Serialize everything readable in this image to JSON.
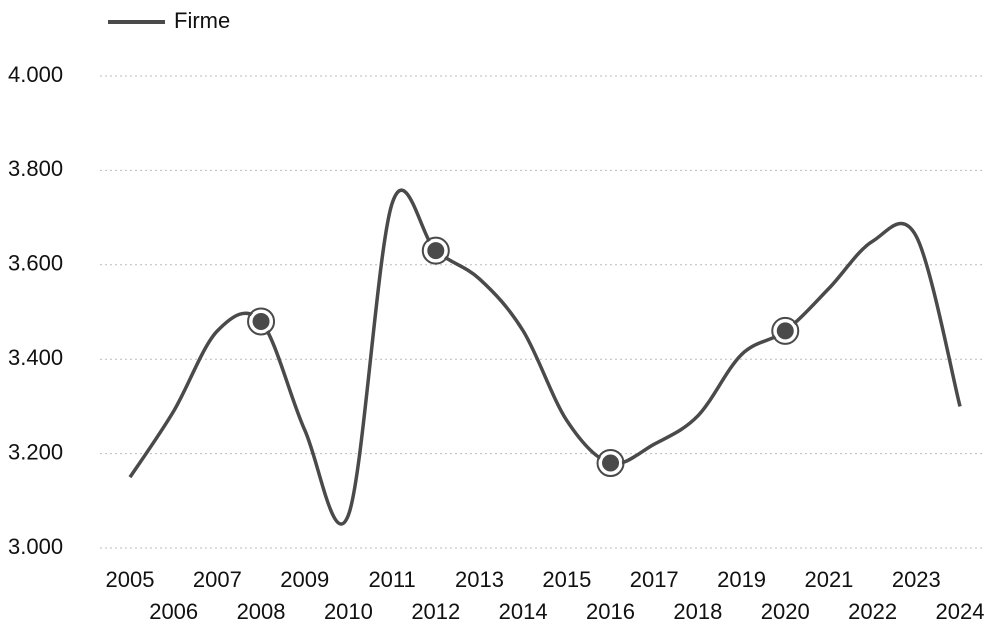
{
  "chart_data": {
    "type": "line",
    "x": [
      2005,
      2006,
      2007,
      2008,
      2009,
      2010,
      2011,
      2012,
      2013,
      2014,
      2015,
      2016,
      2017,
      2018,
      2019,
      2020,
      2021,
      2022,
      2023,
      2024
    ],
    "xlim": [
      2005,
      2024
    ],
    "series": [
      {
        "name": "Firme",
        "color": "#4a4a4a",
        "values": [
          3150,
          3290,
          3460,
          3480,
          3250,
          3070,
          3730,
          3630,
          3570,
          3460,
          3270,
          3180,
          3220,
          3280,
          3410,
          3460,
          3550,
          3650,
          3660,
          3300
        ]
      }
    ],
    "marker_indices": [
      3,
      7,
      11,
      15
    ],
    "ylim": [
      3000,
      4000
    ],
    "yticks": [
      {
        "value": 3000,
        "label": "3.000"
      },
      {
        "value": 3200,
        "label": "3.200"
      },
      {
        "value": 3400,
        "label": "3.400"
      },
      {
        "value": 3600,
        "label": "3.600"
      },
      {
        "value": 3800,
        "label": "3.800"
      },
      {
        "value": 4000,
        "label": "4.000"
      }
    ],
    "grid": true,
    "legend": "top-left"
  }
}
